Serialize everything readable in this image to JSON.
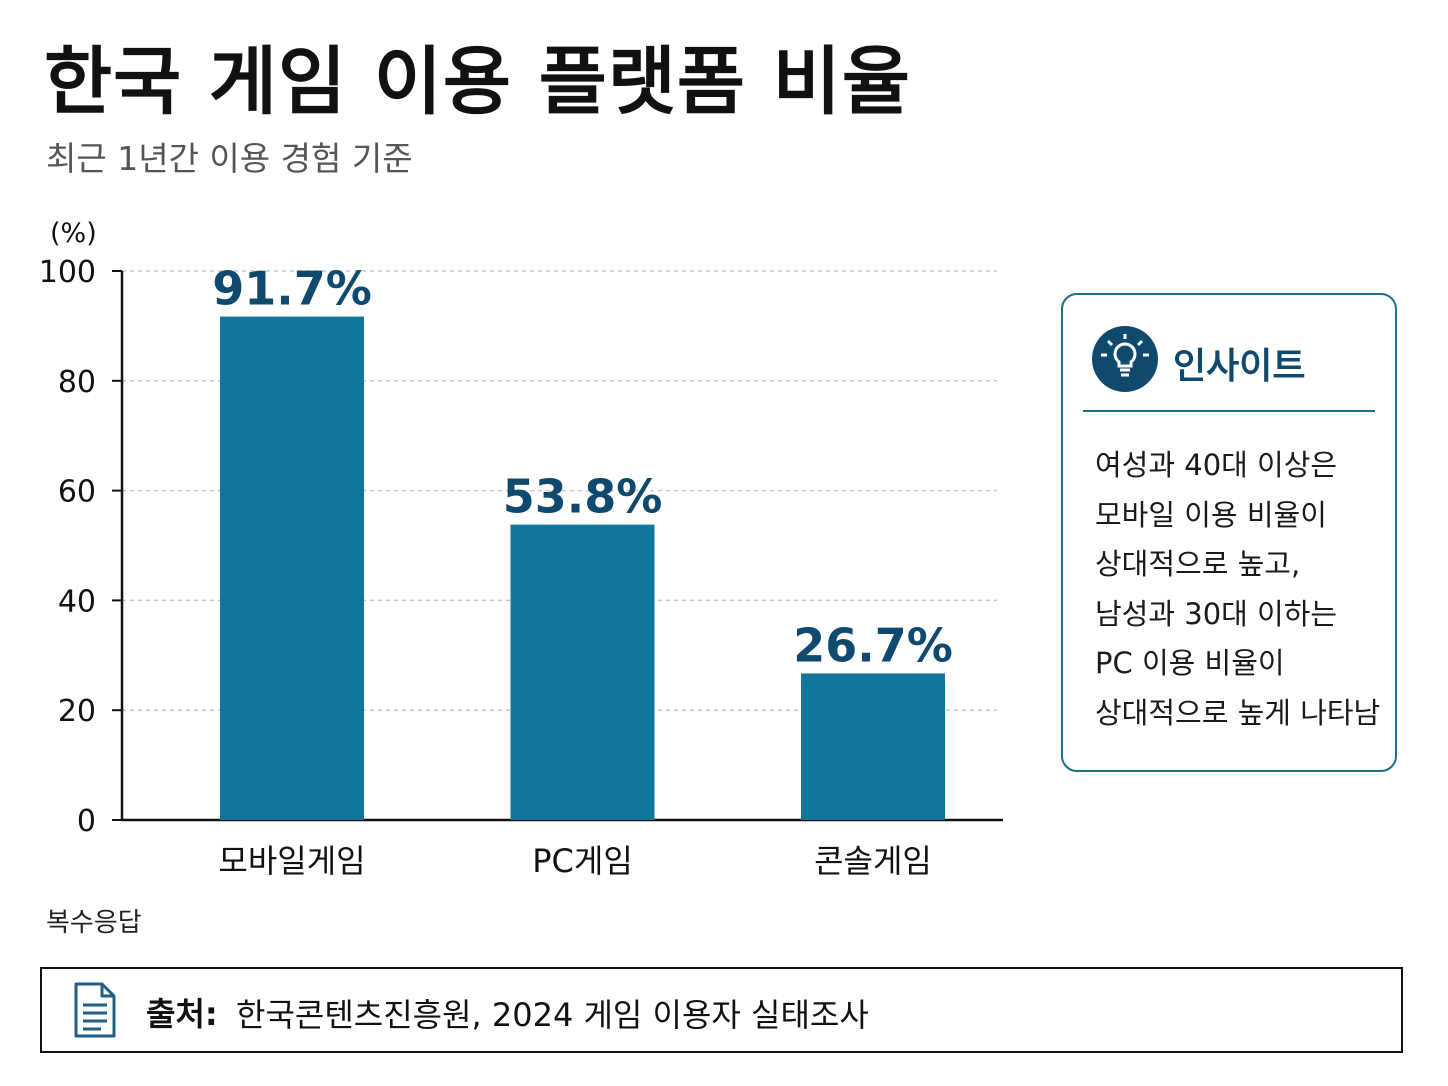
{
  "header": {
    "title": "한국 게임 이용 플랫폼 비율",
    "subtitle": "최근 1년간 이용 경험 기준"
  },
  "chart_data": {
    "type": "bar",
    "title": "한국 게임 이용 플랫폼 비율",
    "subtitle": "최근 1년간 이용 경험 기준",
    "categories": [
      "모바일게임",
      "PC게임",
      "콘솔게임"
    ],
    "values": [
      91.7,
      53.8,
      26.7
    ],
    "value_labels": [
      "91.7%",
      "53.8%",
      "26.7%"
    ],
    "ylabel": "(%)",
    "ylim": [
      0,
      100
    ],
    "yticks": [
      0,
      20,
      40,
      60,
      80,
      100
    ],
    "grid": true,
    "colors": {
      "bar": "#10769a",
      "value_label": "#0f4a6e",
      "grid": "#c8c8c8",
      "axis": "#111111"
    }
  },
  "note": "복수응답",
  "insight": {
    "title": "인사이트",
    "icon": "lightbulb-icon",
    "lines": [
      "여성과 40대 이상은",
      "모바일 이용 비율이",
      "상대적으로 높고,",
      "남성과 30대 이하는",
      "PC 이용 비율이",
      "상대적으로 높게 나타남"
    ]
  },
  "source": {
    "icon": "document-icon",
    "label": "출처:",
    "text": "한국콘텐츠진흥원, 2024 게임 이용자 실태조사"
  }
}
